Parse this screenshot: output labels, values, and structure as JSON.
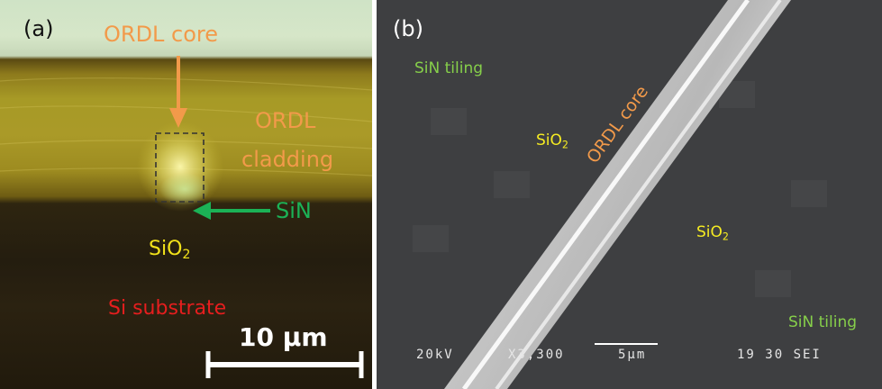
{
  "panel_a": {
    "label": "(a)",
    "ordl_core": "ORDL core",
    "ordl_cladding_line1": "ORDL",
    "ordl_cladding_line2": "cladding",
    "sin": "SiN",
    "sio2_main": "SiO",
    "sio2_sub": "2",
    "si_substrate": "Si substrate",
    "scale_bar": "10 μm"
  },
  "panel_b": {
    "label": "(b)",
    "sin_tiling_top": "SiN tiling",
    "sin_tiling_bottom": "SiN tiling",
    "sio2_left_main": "SiO",
    "sio2_left_sub": "2",
    "sio2_right_main": "SiO",
    "sio2_right_sub": "2",
    "ordl_core": "ORDL core",
    "sem_voltage": "20kV",
    "sem_mag": "X3,300",
    "sem_scale": "5μm",
    "sem_info": "19 30 SEI"
  },
  "colors": {
    "orange": "#f29a4a",
    "green": "#1bb256",
    "yellow": "#f2e21a",
    "red": "#e61e1e",
    "sem_green": "#86cf4a"
  }
}
